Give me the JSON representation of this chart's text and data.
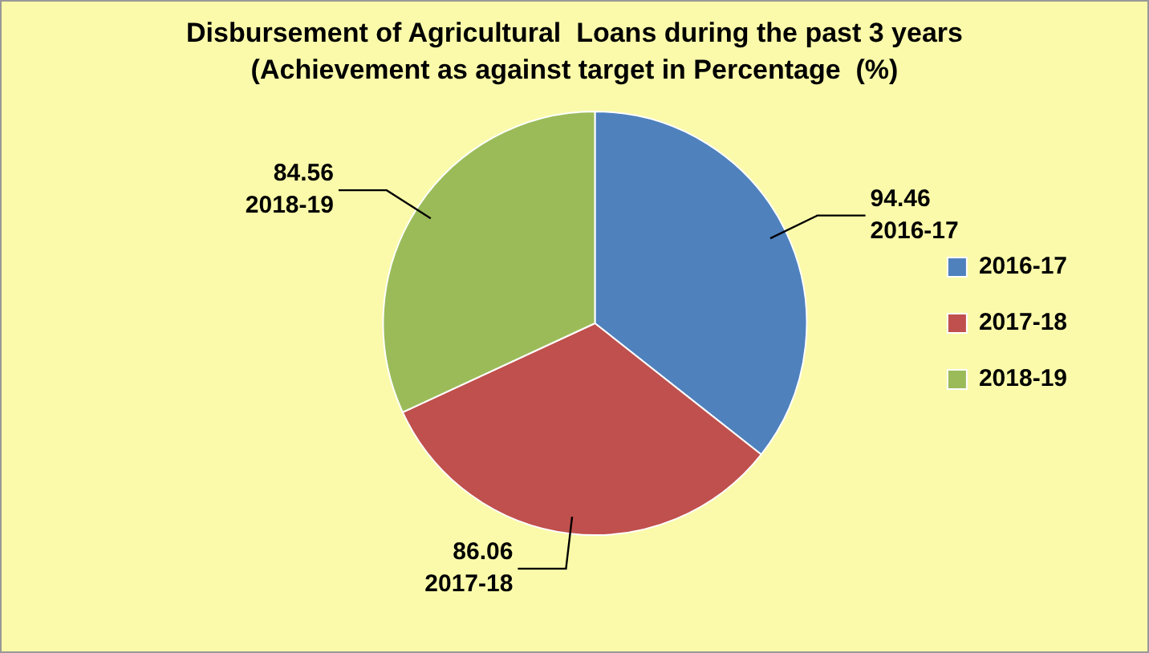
{
  "chart_data": {
    "type": "pie",
    "title": "Disbursement of Agricultural  Loans during the past 3 years (Achievement as against target in Percentage  (%)",
    "categories": [
      "2016-17",
      "2017-18",
      "2018-19"
    ],
    "values": [
      94.46,
      86.06,
      84.56
    ],
    "colors": [
      "#4f81bd",
      "#c0504d",
      "#9bbb59"
    ],
    "data_labels": true,
    "legend": "right"
  }
}
